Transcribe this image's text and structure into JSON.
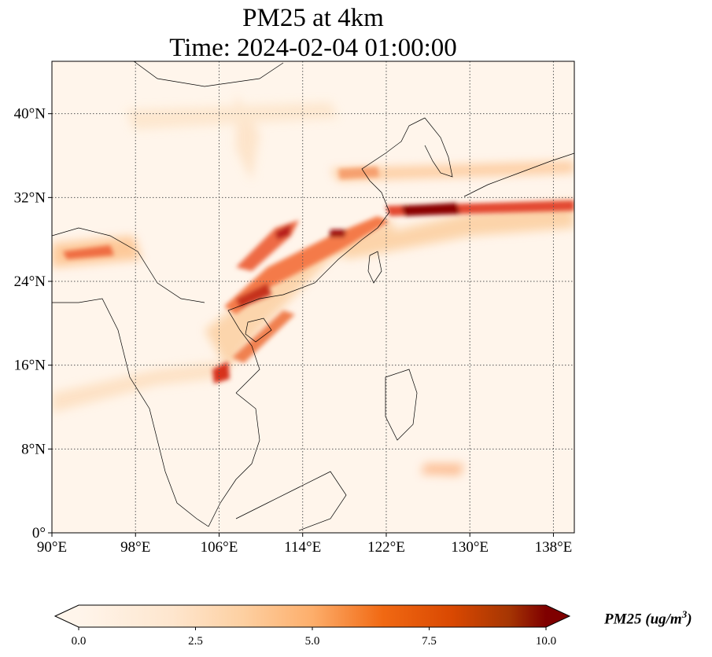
{
  "title": {
    "line1": "PM25 at 4km",
    "line2": "Time: 2024-02-04 01:00:00"
  },
  "map": {
    "extent": {
      "lon": [
        90,
        140
      ],
      "lat": [
        0,
        45
      ]
    },
    "lon_ticks": [
      {
        "value": 90,
        "label": "90°E"
      },
      {
        "value": 98,
        "label": "98°E"
      },
      {
        "value": 106,
        "label": "106°E"
      },
      {
        "value": 114,
        "label": "114°E"
      },
      {
        "value": 122,
        "label": "122°E"
      },
      {
        "value": 130,
        "label": "130°E"
      },
      {
        "value": 138,
        "label": "138°E"
      }
    ],
    "lat_ticks": [
      {
        "value": 0,
        "label": "0°"
      },
      {
        "value": 8,
        "label": "8°N"
      },
      {
        "value": 16,
        "label": "16°N"
      },
      {
        "value": 24,
        "label": "24°N"
      },
      {
        "value": 32,
        "label": "32°N"
      },
      {
        "value": 40,
        "label": "40°N"
      }
    ],
    "gridlines": true,
    "background_color": "#fff5eb",
    "colormap": "OrRd"
  },
  "colorbar": {
    "label_text": "PM25 (ug/m",
    "label_sup": "3",
    "label_close": ")",
    "range": [
      0,
      10
    ],
    "extend": "both",
    "ticks": [
      {
        "value": 0,
        "label": "0.0"
      },
      {
        "value": 2.5,
        "label": "2.5"
      },
      {
        "value": 5,
        "label": "5.0"
      },
      {
        "value": 7.5,
        "label": "7.5"
      },
      {
        "value": 10,
        "label": "10.0"
      }
    ],
    "colors": [
      "#fff5eb",
      "#fee6ce",
      "#fdd0a2",
      "#fdae6b",
      "#f16913",
      "#d94801",
      "#a63603",
      "#7f0000"
    ]
  }
}
